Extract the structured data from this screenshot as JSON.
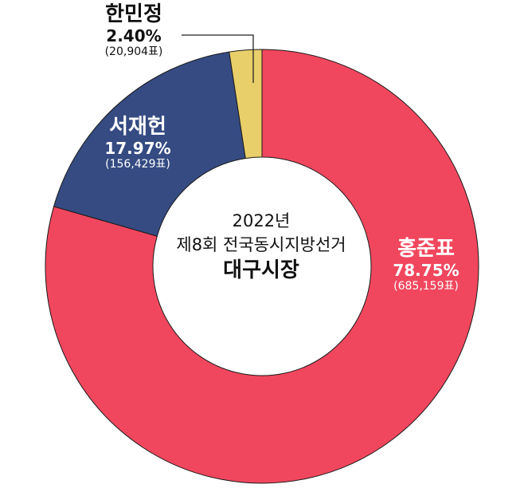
{
  "chart_data": {
    "type": "pie",
    "center_title": [
      "2022년",
      "제8회 전국동시지방선거",
      "대구시장"
    ],
    "slices": [
      {
        "name": "홍준표",
        "percent": 78.75,
        "percent_label": "78.75%",
        "votes_label": "(685,159표)",
        "color": "#F1475E"
      },
      {
        "name": "서재헌",
        "percent": 17.97,
        "percent_label": "17.97%",
        "votes_label": "(156,429표)",
        "color": "#354B82"
      },
      {
        "name": "한민정",
        "percent": 2.4,
        "percent_label": "2.40%",
        "votes_label": "(20,904표)",
        "color": "#E9CF6A"
      }
    ]
  }
}
